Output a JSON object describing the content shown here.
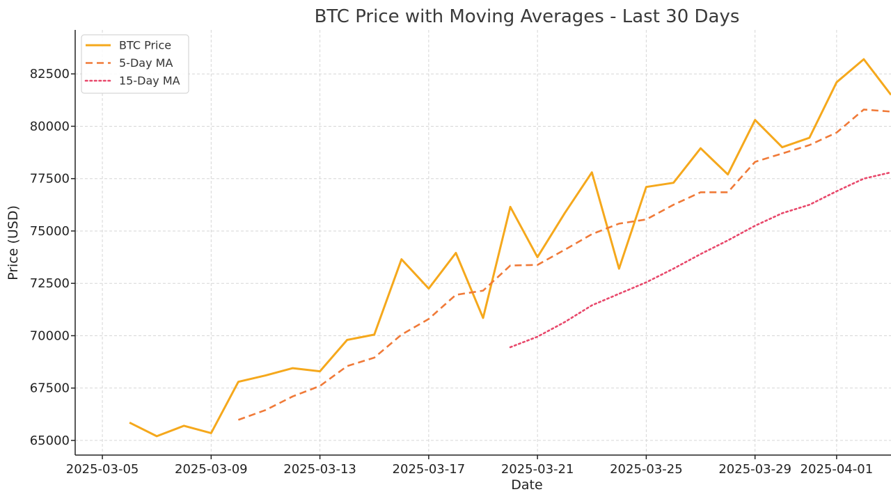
{
  "chart_data": {
    "type": "line",
    "title": "BTC Price with Moving Averages - Last 30 Days",
    "xlabel": "Date",
    "ylabel": "Price (USD)",
    "x_ticks": [
      "2025-03-05",
      "2025-03-09",
      "2025-03-13",
      "2025-03-17",
      "2025-03-21",
      "2025-03-25",
      "2025-03-29",
      "2025-04-01"
    ],
    "y_ticks": [
      65000,
      67500,
      70000,
      72500,
      75000,
      77500,
      80000,
      82500
    ],
    "xlim": [
      "2025-03-04",
      "2025-04-03"
    ],
    "ylim": [
      64300,
      84600
    ],
    "grid": true,
    "legend_position": "top-left",
    "series": [
      {
        "name": "BTC Price",
        "color": "#f5a81c",
        "style": "solid",
        "x": [
          "2025-03-06",
          "2025-03-07",
          "2025-03-08",
          "2025-03-09",
          "2025-03-10",
          "2025-03-11",
          "2025-03-12",
          "2025-03-13",
          "2025-03-14",
          "2025-03-15",
          "2025-03-16",
          "2025-03-17",
          "2025-03-18",
          "2025-03-19",
          "2025-03-20",
          "2025-03-21",
          "2025-03-22",
          "2025-03-23",
          "2025-03-24",
          "2025-03-25",
          "2025-03-26",
          "2025-03-27",
          "2025-03-28",
          "2025-03-29",
          "2025-03-30",
          "2025-03-31",
          "2025-04-01",
          "2025-04-02",
          "2025-04-03"
        ],
        "values": [
          65850,
          65200,
          65700,
          65350,
          67800,
          68100,
          68450,
          68300,
          69800,
          70050,
          73650,
          72250,
          73950,
          70850,
          76150,
          73750,
          75850,
          77800,
          73200,
          77100,
          77300,
          78950,
          77700,
          80300,
          79000,
          79450,
          82100,
          83200,
          81500
        ]
      },
      {
        "name": "5-Day MA",
        "color": "#f07a38",
        "style": "dashed",
        "x": [
          "2025-03-10",
          "2025-03-11",
          "2025-03-12",
          "2025-03-13",
          "2025-03-14",
          "2025-03-15",
          "2025-03-16",
          "2025-03-17",
          "2025-03-18",
          "2025-03-19",
          "2025-03-20",
          "2025-03-21",
          "2025-03-22",
          "2025-03-23",
          "2025-03-24",
          "2025-03-25",
          "2025-03-26",
          "2025-03-27",
          "2025-03-28",
          "2025-03-29",
          "2025-03-30",
          "2025-03-31",
          "2025-04-01",
          "2025-04-02",
          "2025-04-03"
        ],
        "values": [
          65980,
          66450,
          67100,
          67600,
          68550,
          68950,
          70050,
          70800,
          71950,
          72150,
          73350,
          73380,
          74100,
          74850,
          75350,
          75550,
          76250,
          76850,
          76850,
          78300,
          78700,
          79100,
          79700,
          80800,
          80700
        ]
      },
      {
        "name": "15-Day MA",
        "color": "#e8486b",
        "style": "dotted",
        "x": [
          "2025-03-20",
          "2025-03-21",
          "2025-03-22",
          "2025-03-23",
          "2025-03-24",
          "2025-03-25",
          "2025-03-26",
          "2025-03-27",
          "2025-03-28",
          "2025-03-29",
          "2025-03-30",
          "2025-03-31",
          "2025-04-01",
          "2025-04-02",
          "2025-04-03"
        ],
        "values": [
          69450,
          69950,
          70650,
          71450,
          72000,
          72550,
          73200,
          73900,
          74550,
          75250,
          75850,
          76250,
          76900,
          77500,
          77800
        ]
      }
    ]
  }
}
